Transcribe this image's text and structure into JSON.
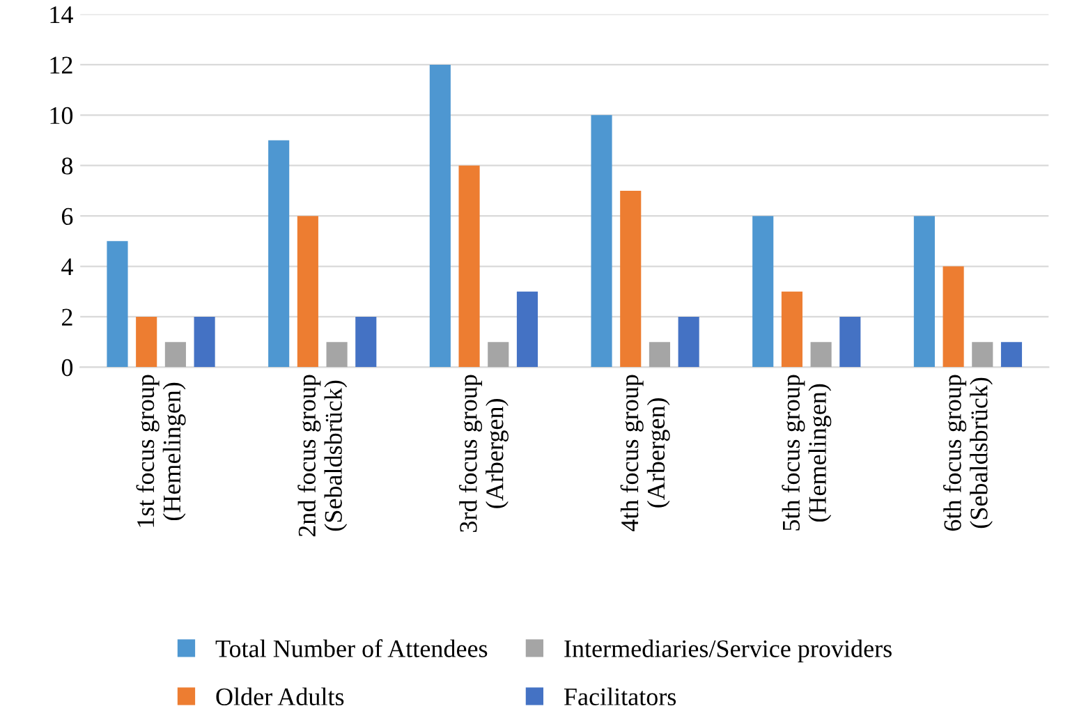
{
  "chart_data": {
    "type": "bar",
    "categories": [
      "1st focus group\n(Hemelingen)",
      "2nd focus group\n(Sebaldsbrück)",
      "3rd focus group\n(Arbergen)",
      "4th focus group\n(Arbergen)",
      "5th focus group\n(Hemelingen)",
      "6th focus group\n(Sebaldsbrück)"
    ],
    "series": [
      {
        "name": "Total Number of Attendees",
        "color": "#4e97d1",
        "values": [
          5,
          9,
          12,
          10,
          6,
          6
        ]
      },
      {
        "name": "Older Adults",
        "color": "#ed7d31",
        "values": [
          2,
          6,
          8,
          7,
          3,
          4
        ]
      },
      {
        "name": "Intermediaries/Service providers",
        "color": "#a5a5a5",
        "values": [
          1,
          1,
          1,
          1,
          1,
          1
        ]
      },
      {
        "name": "Facilitators",
        "color": "#4472c4",
        "values": [
          2,
          2,
          3,
          2,
          2,
          1
        ]
      }
    ],
    "ylim": [
      0,
      14
    ],
    "yticks": [
      0,
      2,
      4,
      6,
      8,
      10,
      12,
      14
    ],
    "grid": "y",
    "legend": "bottom"
  }
}
